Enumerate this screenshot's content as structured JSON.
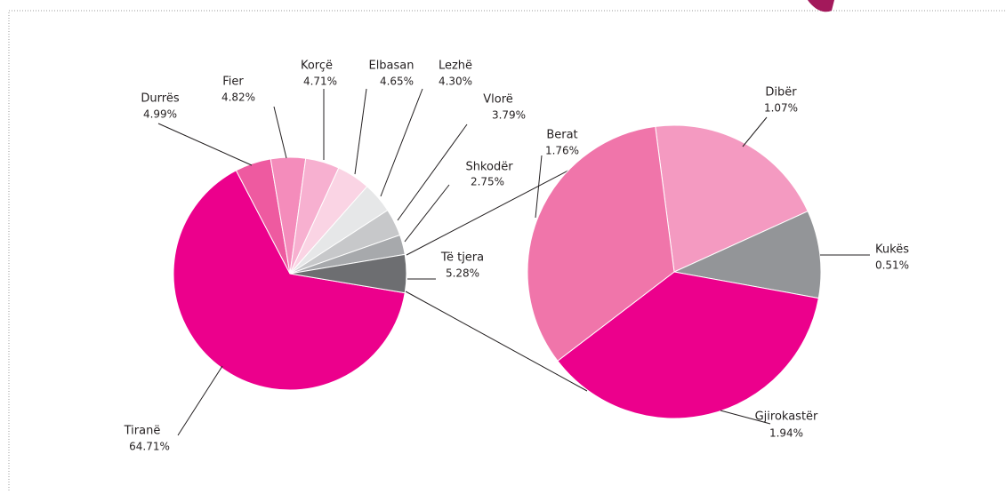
{
  "chart_data": [
    {
      "type": "pie",
      "categories": [
        "Tiranë",
        "Durrës",
        "Fier",
        "Korçë",
        "Elbasan",
        "Lezhë",
        "Vlorë",
        "Shkodër",
        "Të tjera"
      ],
      "values": [
        64.71,
        4.99,
        4.82,
        4.71,
        4.65,
        4.3,
        3.79,
        2.75,
        5.28
      ],
      "value_labels": [
        "64.71%",
        "4.99%",
        "4.82%",
        "4.71%",
        "4.65%",
        "4.30%",
        "3.79%",
        "2.75%",
        "5.28%"
      ],
      "colors": [
        "#ec008c",
        "#ee5aa0",
        "#f48cbb",
        "#f7b0d0",
        "#fad4e4",
        "#e6e7e8",
        "#c7c8ca",
        "#a7a9ac",
        "#6d6e71"
      ]
    },
    {
      "type": "pie",
      "categories": [
        "Dibër",
        "Kukës",
        "Gjirokastër",
        "Berat"
      ],
      "values": [
        1.07,
        0.51,
        1.94,
        1.76
      ],
      "value_labels": [
        "1.07%",
        "0.51%",
        "1.94%",
        "1.76%"
      ],
      "colors": [
        "#f49ac1",
        "#939598",
        "#ec008c",
        "#f075aa"
      ]
    }
  ]
}
